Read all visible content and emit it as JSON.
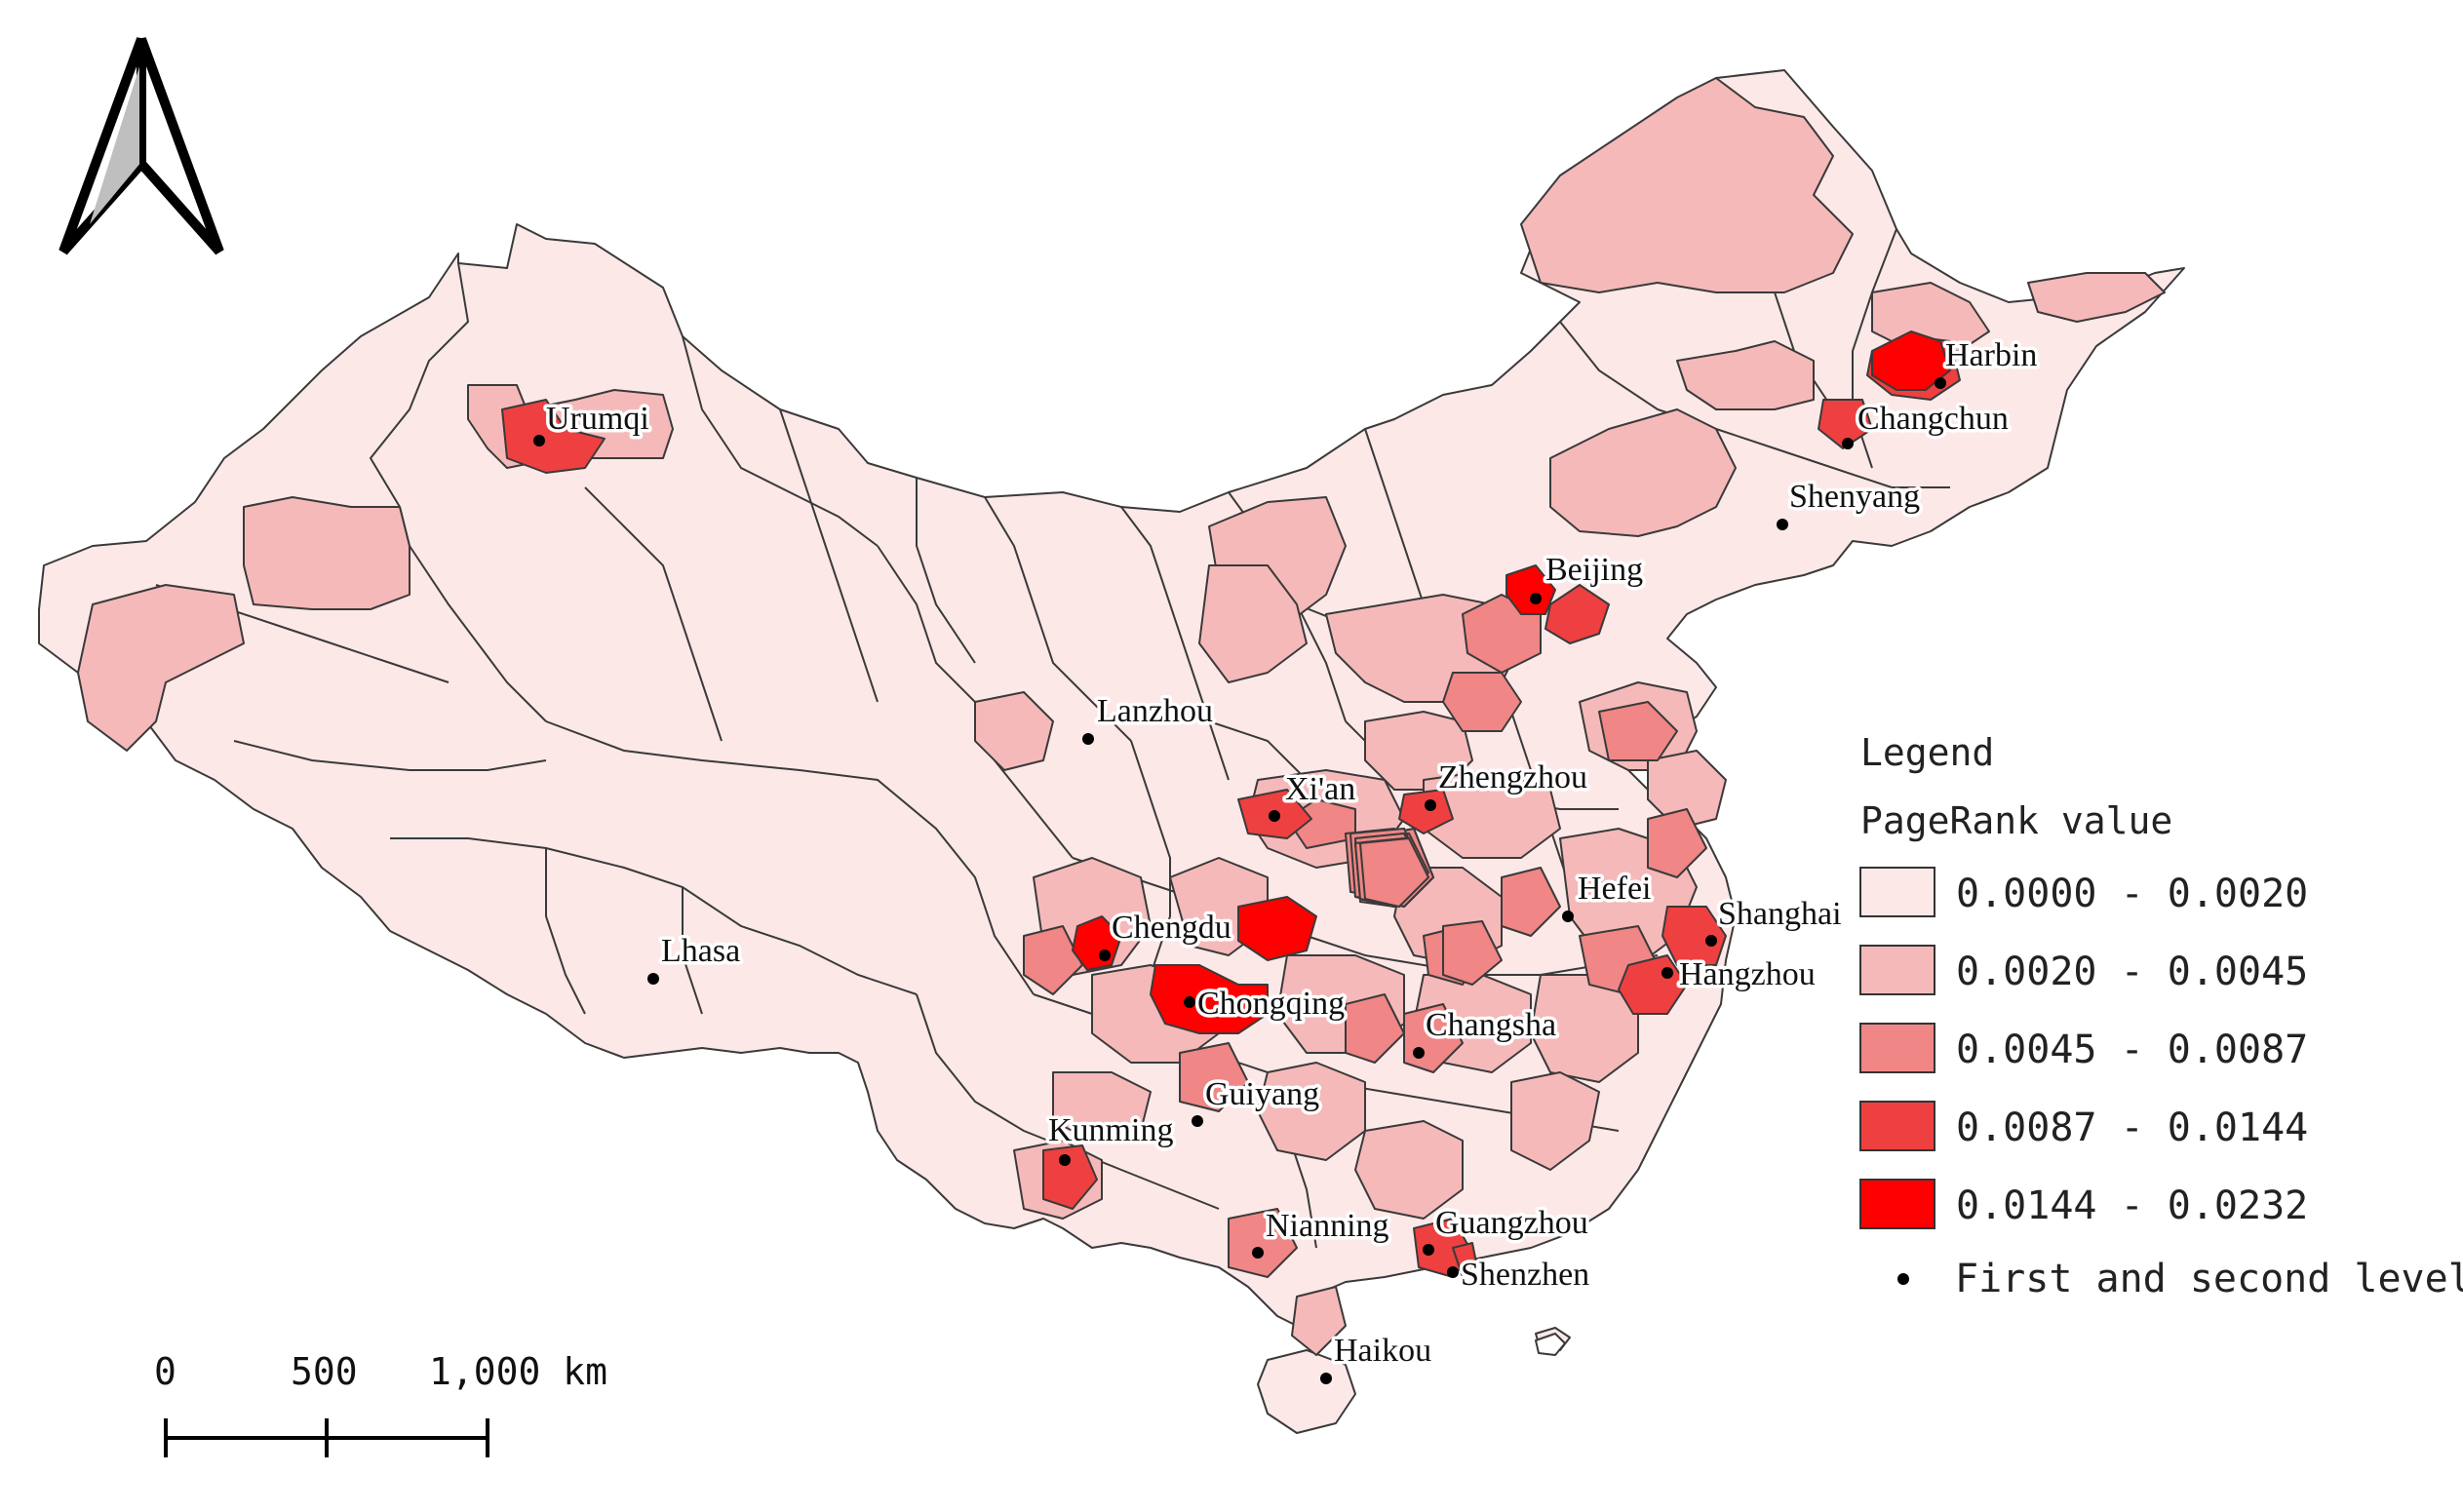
{
  "legend": {
    "title": "Legend",
    "subtitle": "PageRank value",
    "classes": [
      {
        "label": "0.0000 - 0.0020",
        "color": "#fde8e8"
      },
      {
        "label": "0.0020 - 0.0045",
        "color": "#f6b9b9"
      },
      {
        "label": "0.0045 - 0.0087",
        "color": "#f08686"
      },
      {
        "label": "0.0087 - 0.0144",
        "color": "#ee4040"
      },
      {
        "label": "0.0144 - 0.0232",
        "color": "#ff0000"
      }
    ],
    "point_label": "First and second level"
  },
  "scale_bar": {
    "ticks": [
      "0",
      "500",
      "1,000 km"
    ]
  },
  "north_arrow": {
    "icon": "north-arrow-icon"
  },
  "cities": [
    {
      "name": "Urumqi",
      "class": 4
    },
    {
      "name": "Harbin",
      "class": 4
    },
    {
      "name": "Changchun",
      "class": 2
    },
    {
      "name": "Shenyang",
      "class": 2
    },
    {
      "name": "Beijing",
      "class": 5
    },
    {
      "name": "Lanzhou",
      "class": 3
    },
    {
      "name": "Xi'an",
      "class": 4
    },
    {
      "name": "Zhengzhou",
      "class": 4
    },
    {
      "name": "Hefei",
      "class": 3
    },
    {
      "name": "Shanghai",
      "class": 4
    },
    {
      "name": "Hangzhou",
      "class": 4
    },
    {
      "name": "Chengdu",
      "class": 5
    },
    {
      "name": "Chongqing",
      "class": 5
    },
    {
      "name": "Changsha",
      "class": 3
    },
    {
      "name": "Guiyang",
      "class": 3
    },
    {
      "name": "Lhasa",
      "class": 1
    },
    {
      "name": "Kunming",
      "class": 4
    },
    {
      "name": "Nianning",
      "class": 3
    },
    {
      "name": "Guangzhou",
      "class": 4
    },
    {
      "name": "Shenzhen",
      "class": 4
    },
    {
      "name": "Haikou",
      "class": 2
    }
  ]
}
